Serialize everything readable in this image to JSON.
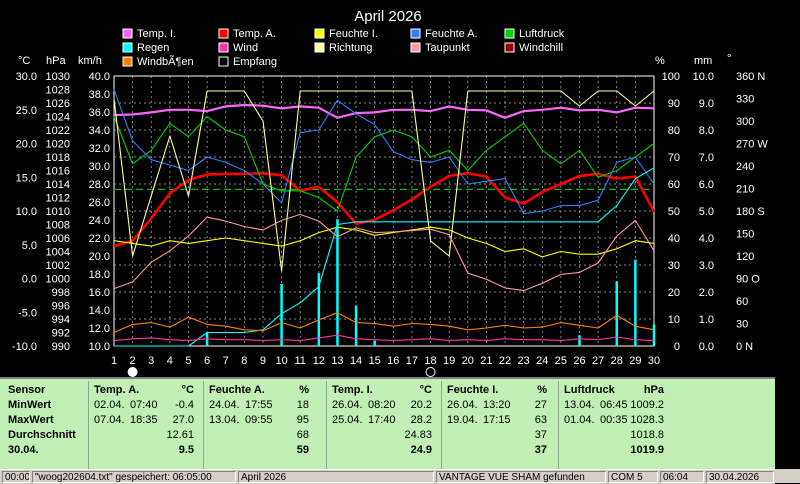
{
  "title": "April 2026",
  "legend": [
    {
      "label": "Temp. I.",
      "color": "#ff66ff"
    },
    {
      "label": "Temp. A.",
      "color": "#ff0000"
    },
    {
      "label": "Feuchte I.",
      "color": "#ffff00"
    },
    {
      "label": "Feuchte A.",
      "color": "#2f7fff"
    },
    {
      "label": "Luftdruck",
      "color": "#00d000"
    },
    {
      "label": "Regen",
      "color": "#00ffff"
    },
    {
      "label": "Wind",
      "color": "#ff33aa"
    },
    {
      "label": "Richtung",
      "color": "#ffff99"
    },
    {
      "label": "Taupunkt",
      "color": "#ff9999"
    },
    {
      "label": "Windchill",
      "color": "#990000"
    },
    {
      "label": "WindbÃ¶en",
      "color": "#ff8000"
    },
    {
      "label": "Empfang",
      "color": "#000000"
    }
  ],
  "axis_units": {
    "temp": "°C",
    "hpa": "hPa",
    "kmh": "km/h",
    "pct": "%",
    "mm": "mm",
    "deg": "°"
  },
  "axis_ticks": {
    "temp": [
      "30.0",
      "25.0",
      "20.0",
      "15.0",
      "10.0",
      "5.0",
      "0.0",
      "-5.0",
      "-10.0"
    ],
    "hpa": [
      "1030",
      "1028",
      "1026",
      "1024",
      "1022",
      "1020",
      "1018",
      "1016",
      "1014",
      "1012",
      "1010",
      "1008",
      "1006",
      "1004",
      "1002",
      "1000",
      "998",
      "996",
      "994",
      "992",
      "990"
    ],
    "kmh": [
      "40.0",
      "38.0",
      "36.0",
      "34.0",
      "32.0",
      "30.0",
      "28.0",
      "26.0",
      "24.0",
      "22.0",
      "20.0",
      "18.0",
      "16.0",
      "14.0",
      "12.0",
      "10.0"
    ],
    "pct": [
      "100",
      "90",
      "80",
      "70",
      "60",
      "50",
      "40",
      "30",
      "20",
      "10",
      "0"
    ],
    "mm": [
      "10.0",
      "9.0",
      "8.0",
      "7.0",
      "6.0",
      "5.0",
      "4.0",
      "3.0",
      "2.0",
      "1.0",
      "0.0"
    ],
    "dir": [
      "360 N",
      "330",
      "300",
      "270 W",
      "240",
      "210",
      "180 S",
      "150",
      "120",
      "90 O",
      "60",
      "30",
      "0 N"
    ]
  },
  "days": [
    "1",
    "2",
    "3",
    "4",
    "5",
    "6",
    "7",
    "8",
    "9",
    "10",
    "11",
    "12",
    "13",
    "14",
    "15",
    "16",
    "17",
    "18",
    "19",
    "20",
    "21",
    "22",
    "23",
    "24",
    "25",
    "26",
    "27",
    "28",
    "29",
    "30"
  ],
  "moon_icons": [
    {
      "day": 2,
      "name": "full-moon-icon"
    },
    {
      "day": 18,
      "name": "new-moon-icon"
    }
  ],
  "chart_data": {
    "type": "line",
    "title": "April 2026",
    "x": [
      1,
      2,
      3,
      4,
      5,
      6,
      7,
      8,
      9,
      10,
      11,
      12,
      13,
      14,
      15,
      16,
      17,
      18,
      19,
      20,
      21,
      22,
      23,
      24,
      25,
      26,
      27,
      28,
      29,
      30
    ],
    "xlabel": "",
    "ylim_temp": [
      -10,
      30
    ],
    "ylim_hpa": [
      990,
      1030
    ],
    "ylim_pct": [
      0,
      100
    ],
    "ylim_mm": [
      0,
      10
    ],
    "ylim_dir": [
      0,
      360
    ],
    "grid": true,
    "series": [
      {
        "name": "Temp. I.",
        "axis": "temp",
        "color": "#ff66ff",
        "values": [
          24.2,
          24.3,
          24.6,
          25.0,
          25.0,
          24.8,
          25.5,
          25.7,
          25.6,
          25.2,
          25.5,
          25.3,
          23.8,
          24.5,
          24.6,
          25.0,
          25.0,
          24.8,
          25.5,
          25.0,
          24.9,
          23.8,
          24.8,
          25.0,
          25.3,
          24.9,
          25.0,
          24.6,
          25.3,
          25.2
        ]
      },
      {
        "name": "Temp. A.",
        "axis": "temp",
        "color": "#ff0000",
        "values": [
          4.8,
          5.6,
          8.9,
          12.6,
          14.6,
          15.4,
          15.5,
          15.5,
          15.6,
          15.3,
          13.0,
          13.6,
          11.3,
          8.1,
          8.7,
          10.1,
          11.7,
          13.6,
          15.2,
          15.6,
          15.1,
          12.0,
          11.1,
          12.8,
          14.0,
          15.2,
          15.5,
          14.8,
          15.1,
          9.9
        ]
      },
      {
        "name": "Feuchte I.",
        "axis": "pct",
        "color": "#ffff00",
        "values": [
          39,
          38,
          37,
          39,
          38,
          39,
          40,
          39,
          38,
          37,
          39,
          42,
          44,
          43,
          41,
          42,
          43,
          44,
          43,
          40,
          38,
          35,
          36,
          33,
          35,
          34,
          34,
          36,
          39,
          38
        ]
      },
      {
        "name": "Feuchte A.",
        "axis": "pct",
        "color": "#2f7fff",
        "values": [
          95,
          76,
          69,
          67,
          65,
          70,
          68,
          65,
          60,
          53,
          79,
          80,
          91,
          86,
          82,
          72,
          69,
          68,
          70,
          60,
          61,
          62,
          49,
          50,
          52,
          52,
          54,
          68,
          70,
          60
        ]
      },
      {
        "name": "Luftdruck",
        "axis": "hpa",
        "color": "#00d000",
        "values": [
          1024,
          1017,
          1019,
          1023,
          1021,
          1024,
          1022,
          1021,
          1014,
          1013,
          1013,
          1012,
          1010,
          1018,
          1021,
          1022,
          1021,
          1018,
          1019,
          1016,
          1019,
          1021,
          1023,
          1019,
          1017,
          1019,
          1015,
          1016,
          1018,
          1020
        ]
      },
      {
        "name": "Regen",
        "axis": "mm",
        "color": "#00ffff",
        "values": [
          0,
          0,
          0,
          0,
          0,
          0.5,
          0.5,
          0.5,
          0.6,
          1.2,
          1.6,
          2.2,
          4.5,
          4.6,
          4.6,
          4.6,
          4.6,
          4.6,
          4.6,
          4.6,
          4.6,
          4.6,
          4.6,
          4.6,
          4.6,
          4.6,
          4.6,
          5.2,
          6.2,
          6.6
        ]
      },
      {
        "name": "Wind",
        "axis": "kmh",
        "color": "#ff33aa",
        "values": [
          10.6,
          10.8,
          10.9,
          10.7,
          10.6,
          10.8,
          10.7,
          10.7,
          10.6,
          10.7,
          10.6,
          10.9,
          11.2,
          10.8,
          10.7,
          10.6,
          10.7,
          10.8,
          10.6,
          10.7,
          10.6,
          10.8,
          10.7,
          10.7,
          10.6,
          10.8,
          10.7,
          11.0,
          10.7,
          10.6
        ]
      },
      {
        "name": "Richtung",
        "axis": "dir",
        "color": "#ffff99",
        "values": [
          330,
          120,
          200,
          280,
          200,
          340,
          340,
          340,
          300,
          100,
          340,
          340,
          340,
          340,
          340,
          340,
          340,
          140,
          120,
          340,
          340,
          340,
          340,
          340,
          340,
          320,
          340,
          340,
          320,
          340
        ]
      },
      {
        "name": "Taupunkt",
        "axis": "temp",
        "color": "#ff9999",
        "values": [
          -1.5,
          -0.5,
          2.4,
          4.1,
          6.3,
          9.1,
          8.5,
          7.7,
          7.2,
          8.6,
          9.5,
          8.5,
          6.2,
          7.5,
          6.8,
          6.9,
          7.1,
          7.3,
          6.5,
          0.8,
          -0.1,
          -1.4,
          -1.8,
          -0.7,
          0.6,
          0.9,
          2.3,
          6.3,
          8.6,
          4.1
        ]
      },
      {
        "name": "WindbÃ¶en",
        "axis": "kmh",
        "color": "#ff8000",
        "values": [
          11.5,
          12.4,
          12.6,
          12.1,
          13.2,
          12.4,
          12.2,
          11.8,
          11.7,
          12.6,
          12.0,
          12.9,
          13.7,
          12.6,
          12.5,
          12.2,
          12.5,
          12.4,
          12.2,
          11.8,
          12.0,
          12.3,
          12.0,
          12.1,
          12.6,
          12.3,
          12.0,
          13.4,
          12.2,
          11.8
        ]
      },
      {
        "name": "Empfang",
        "axis": "pct",
        "color": "#000000",
        "values": [
          100,
          100,
          100,
          100,
          100,
          100,
          100,
          100,
          100,
          100,
          100,
          100,
          100,
          100,
          100,
          100,
          100,
          100,
          100,
          100,
          100,
          100,
          100,
          100,
          100,
          100,
          100,
          100,
          100,
          100
        ]
      }
    ],
    "rain_bars": {
      "name": "Regen",
      "axis": "mm",
      "values": [
        0,
        0,
        0,
        0,
        0,
        0.5,
        0,
        0,
        0,
        2.3,
        0,
        2.7,
        4.7,
        1.5,
        0.2,
        0,
        0,
        0,
        0,
        0,
        0,
        0,
        0,
        0,
        0,
        0.4,
        0,
        2.4,
        3.2,
        0.8
      ]
    },
    "reference_line": {
      "axis": "temp",
      "value": 13.2,
      "color": "#00c000"
    }
  },
  "summary": {
    "sensor_label": "Sensor",
    "row_labels": [
      "MinWert",
      "MaxWert",
      "Durchschnitt",
      "30.04."
    ],
    "groups": [
      {
        "name": "Temp. A.",
        "unit": "°C",
        "rows": [
          [
            "02.04.",
            "07:40",
            "-0.4"
          ],
          [
            "07.04.",
            "18:35",
            "27.0"
          ],
          [
            "",
            "",
            "12.61"
          ],
          [
            "",
            "",
            "9.5"
          ]
        ]
      },
      {
        "name": "Feuchte A.",
        "unit": "%",
        "rows": [
          [
            "24.04.",
            "17:55",
            "18"
          ],
          [
            "13.04.",
            "09:55",
            "95"
          ],
          [
            "",
            "",
            "68"
          ],
          [
            "",
            "",
            "59"
          ]
        ]
      },
      {
        "name": "Temp. I.",
        "unit": "°C",
        "rows": [
          [
            "26.04.",
            "08:20",
            "20.2"
          ],
          [
            "25.04.",
            "17:40",
            "28.2"
          ],
          [
            "",
            "",
            "24.83"
          ],
          [
            "",
            "",
            "24.9"
          ]
        ]
      },
      {
        "name": "Feuchte I.",
        "unit": "%",
        "rows": [
          [
            "26.04.",
            "13:20",
            "27"
          ],
          [
            "19.04.",
            "17:15",
            "63"
          ],
          [
            "",
            "",
            "37"
          ],
          [
            "",
            "",
            "37"
          ]
        ]
      },
      {
        "name": "Luftdruck",
        "unit": "hPa",
        "rows": [
          [
            "13.04.",
            "06:45",
            "1009.2"
          ],
          [
            "01.04.",
            "00:35",
            "1028.3"
          ],
          [
            "",
            "",
            "1018.8"
          ],
          [
            "",
            "",
            "1019.9"
          ]
        ]
      }
    ]
  },
  "statusbar": {
    "time": "00:00",
    "file": "\"woog202604.txt\" gespeichert: 06:05:00",
    "month": "April 2026",
    "station": "VANTAGE VUE SHAM gefunden",
    "port": "COM 5",
    "clock": "06:04",
    "date": "30.04.2026"
  }
}
